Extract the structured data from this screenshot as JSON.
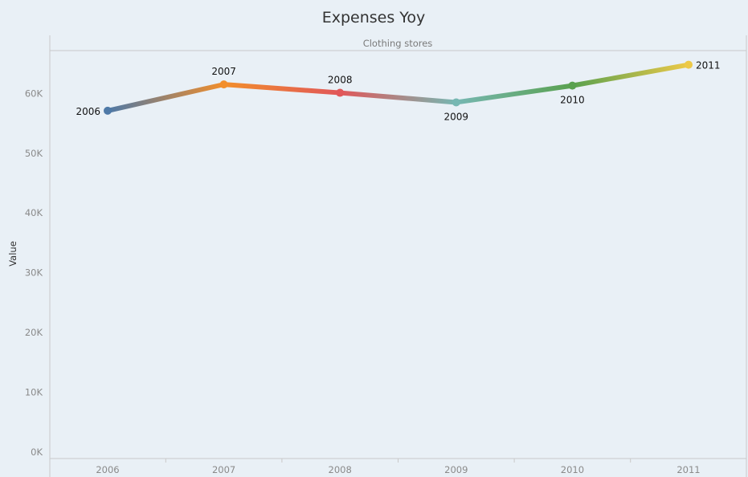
{
  "chart_data": {
    "type": "line",
    "title": "Expenses Yoy",
    "facet_label": "Clothing stores",
    "xlabel": "",
    "ylabel": "Value",
    "x": [
      "2006",
      "2007",
      "2008",
      "2009",
      "2010",
      "2011"
    ],
    "values": [
      57100,
      61500,
      60100,
      58500,
      61300,
      64800
    ],
    "point_colors": [
      "#4e79a7",
      "#f28e2b",
      "#e15759",
      "#76b7b2",
      "#59a14f",
      "#edc948"
    ],
    "point_labels": [
      "2006",
      "2007",
      "2008",
      "2009",
      "2010",
      "2011"
    ],
    "ylim": [
      0,
      70000
    ],
    "yticks": [
      0,
      10000,
      20000,
      30000,
      40000,
      50000,
      60000
    ],
    "ytick_labels": [
      "0K",
      "10K",
      "20K",
      "30K",
      "40K",
      "50K",
      "60K"
    ],
    "grid": false,
    "legend": "none"
  }
}
